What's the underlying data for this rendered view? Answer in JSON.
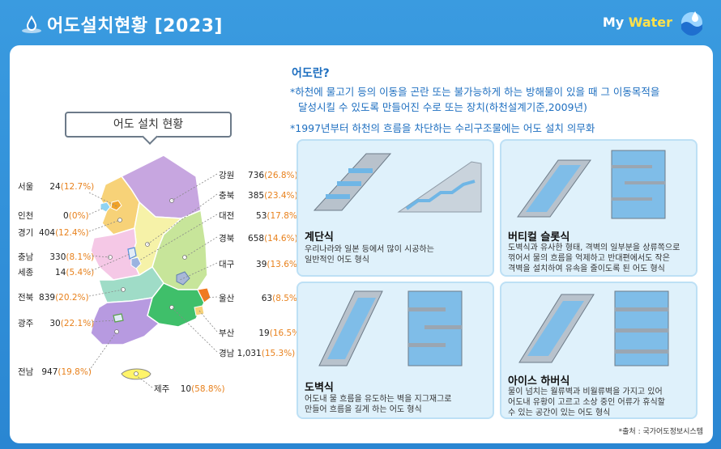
{
  "header": {
    "title": "어도설치현황 [2023]",
    "brand_prefix": "My ",
    "brand_suffix": "Water"
  },
  "map_section": {
    "title": "어도 설치 현황",
    "regions": [
      {
        "name": "서울",
        "count": "24",
        "pct": "(12.7%)"
      },
      {
        "name": "인천",
        "count": "0",
        "pct": "(0%)"
      },
      {
        "name": "경기",
        "count": "404",
        "pct": "(12.4%)"
      },
      {
        "name": "충남",
        "count": "330",
        "pct": "(8.1%)"
      },
      {
        "name": "세종",
        "count": "14",
        "pct": "(5.4%)"
      },
      {
        "name": "전북",
        "count": "839",
        "pct": "(20.2%)"
      },
      {
        "name": "광주",
        "count": "30",
        "pct": "(22.1%)"
      },
      {
        "name": "전남",
        "count": "947",
        "pct": "(19.8%)"
      },
      {
        "name": "제주",
        "count": "10",
        "pct": "(58.8%)"
      },
      {
        "name": "강원",
        "count": "736",
        "pct": "(26.8%)"
      },
      {
        "name": "충북",
        "count": "385",
        "pct": "(23.4%)"
      },
      {
        "name": "대전",
        "count": "53",
        "pct": "(17.8%)"
      },
      {
        "name": "경북",
        "count": "658",
        "pct": "(14.6%)"
      },
      {
        "name": "대구",
        "count": "39",
        "pct": "(13.6%)"
      },
      {
        "name": "울산",
        "count": "63",
        "pct": "(8.5%)"
      },
      {
        "name": "부산",
        "count": "19",
        "pct": "(16.5%)"
      },
      {
        "name": "경남",
        "count": "1,031",
        "pct": "(15.3%)"
      }
    ]
  },
  "definition": {
    "title": "어도란?",
    "line1": "*하천에 물고기 등의 이동을 곤란 또는 불가능하게 하는 방해물이 있을 때 그 이동목적을",
    "line2": "달성시킬 수 있도록 만들어진 수로 또는 장치(하천설계기준,2009년)",
    "line3": "*1997년부터 하천의 흐름을 차단하는 수리구조물에는 어도 설치 의무화"
  },
  "types": [
    {
      "name": "계단식",
      "desc1": "우리나라와 일본 등에서 많이 시공하는",
      "desc2": "일반적인 어도 형식",
      "desc3": ""
    },
    {
      "name": "버티컬 슬롯식",
      "desc1": "도벽식과 유사한 형태, 격벽의 일부분을 상류쪽으로",
      "desc2": "꺾어서 물의 흐름을 억제하고 반대편에서도 작은",
      "desc3": "격벽을 설치하여 유속을 줄이도록 된 어도 형식"
    },
    {
      "name": "도벽식",
      "desc1": "어도내 물 흐름을 유도하는 벽을 지그재그로",
      "desc2": "만들어 흐름을 길게 하는 어도 형식",
      "desc3": ""
    },
    {
      "name": "아이스 하버식",
      "desc1": "물이 넘치는 월류벽과 비월류벽을 가지고 있어",
      "desc2": "어도내 유황이 고르고 소상 중인 어류가 휴식할",
      "desc3": "수 있는 공간이 있는 어도 형식"
    }
  ],
  "source": "*출처 : 국가어도정보시스템",
  "colors": {
    "background": "#2f8fd8",
    "accent_text": "#1e6fc0",
    "percent": "#e8811c",
    "card_bg": "#dff1fb"
  }
}
